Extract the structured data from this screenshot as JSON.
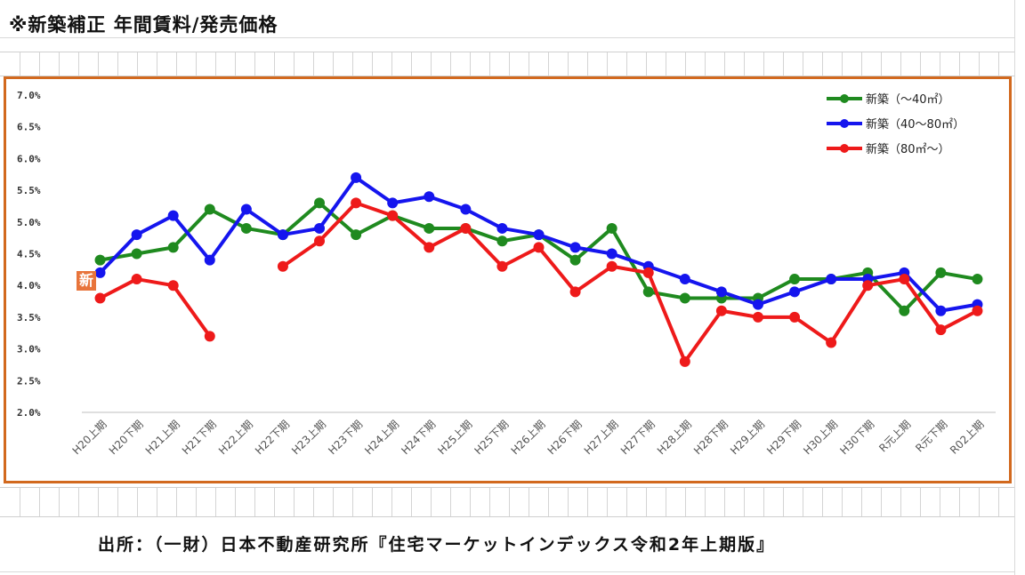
{
  "page": {
    "title": "※新築補正 年間賃料/発売価格",
    "source": "出所：（一財）日本不動産研究所『住宅マーケットインデックス令和2年上期版』",
    "badge": "新"
  },
  "chart_data": {
    "type": "line",
    "title": "",
    "xlabel": "",
    "ylabel": "",
    "ylim": [
      2.0,
      7.0
    ],
    "yticks": [
      "2.0%",
      "2.5%",
      "3.0%",
      "3.5%",
      "4.0%",
      "4.5%",
      "5.0%",
      "5.5%",
      "6.0%",
      "6.5%",
      "7.0%"
    ],
    "grid": false,
    "legend_position": "top-right",
    "categories": [
      "H20上期",
      "H20下期",
      "H21上期",
      "H21下期",
      "H22上期",
      "H22下期",
      "H23上期",
      "H23下期",
      "H24上期",
      "H24下期",
      "H25上期",
      "H25下期",
      "H26上期",
      "H26下期",
      "H27上期",
      "H27下期",
      "H28上期",
      "H28下期",
      "H29上期",
      "H29下期",
      "H30上期",
      "H30下期",
      "R元上期",
      "R元下期",
      "R02上期"
    ],
    "series": [
      {
        "name": "新築（～40㎡）",
        "color": "#1f8a1f",
        "values": [
          4.4,
          4.5,
          4.6,
          5.2,
          4.9,
          4.8,
          5.3,
          4.8,
          5.1,
          4.9,
          4.9,
          4.7,
          4.8,
          4.4,
          4.9,
          3.9,
          3.8,
          3.8,
          3.8,
          4.1,
          4.1,
          4.2,
          3.6,
          4.2,
          4.1
        ]
      },
      {
        "name": "新築（40～80㎡）",
        "color": "#1515ee",
        "values": [
          4.2,
          4.8,
          5.1,
          4.4,
          5.2,
          4.8,
          4.9,
          5.7,
          5.3,
          5.4,
          5.2,
          4.9,
          4.8,
          4.6,
          4.5,
          4.3,
          4.1,
          3.9,
          3.7,
          3.9,
          4.1,
          4.1,
          4.2,
          3.6,
          3.7
        ]
      },
      {
        "name": "新築（80㎡～）",
        "color": "#ee1a1a",
        "values": [
          3.8,
          4.1,
          4.0,
          3.2,
          null,
          4.3,
          4.7,
          5.3,
          5.1,
          4.6,
          4.9,
          4.3,
          4.6,
          3.9,
          4.3,
          4.2,
          2.8,
          3.6,
          3.5,
          3.5,
          3.1,
          4.0,
          4.1,
          3.3,
          3.6
        ]
      }
    ]
  }
}
